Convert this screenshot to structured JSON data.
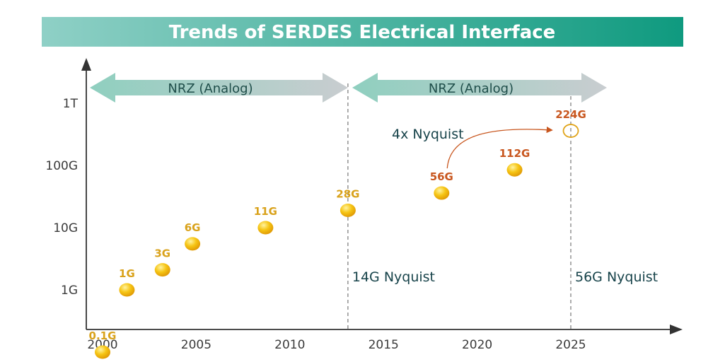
{
  "chart_data": {
    "type": "scatter",
    "title": "Trends of SERDES Electrical Interface",
    "xlabel": "",
    "ylabel": "",
    "x_scale": "linear",
    "y_scale": "log",
    "xlim": [
      1999,
      2030
    ],
    "ylim": [
      0.05,
      3000
    ],
    "x_ticks": [
      2000,
      2005,
      2010,
      2015,
      2020,
      2025
    ],
    "x_tick_labels": [
      "2000",
      "2005",
      "2010",
      "2015",
      "2020",
      "2025"
    ],
    "y_ticks": [
      1,
      10,
      100,
      1000
    ],
    "y_tick_labels": [
      "1G",
      "10G",
      "100G",
      "1T"
    ],
    "grid": false,
    "points": [
      {
        "label": "0.1G",
        "x": 2000,
        "y": 0.1,
        "color": "#d9a21b"
      },
      {
        "label": "1G",
        "x": 2001.3,
        "y": 1,
        "color": "#d9a21b"
      },
      {
        "label": "3G",
        "x": 2003.2,
        "y": 2.1,
        "color": "#d9a21b"
      },
      {
        "label": "6G",
        "x": 2004.8,
        "y": 5.5,
        "color": "#d9a21b"
      },
      {
        "label": "11G",
        "x": 2008.7,
        "y": 10,
        "color": "#d9a21b"
      },
      {
        "label": "28G",
        "x": 2013.1,
        "y": 19,
        "color": "#d9a21b"
      },
      {
        "label": "56G",
        "x": 2018.1,
        "y": 36,
        "color": "#c8561e"
      },
      {
        "label": "112G",
        "x": 2022,
        "y": 85,
        "color": "#c8561e"
      },
      {
        "label": "224G",
        "x": 2025,
        "y": 360,
        "color": "#c8561e",
        "hollow": true
      }
    ],
    "range_arrows": [
      {
        "label": "NRZ (Analog)",
        "x_start": 2000,
        "x_end": 2013
      },
      {
        "label": "NRZ (Analog)",
        "x_start": 2013,
        "x_end": 2026.9
      }
    ],
    "vertical_lines": [
      {
        "x": 2013.1,
        "label": "14G Nyquist"
      },
      {
        "x": 2025,
        "label": "56G Nyquist"
      }
    ],
    "curved_arrow": {
      "label": "4x Nyquist",
      "from_x": 2018.1,
      "to_x": 2024.8
    },
    "colors": {
      "title_bar_start": "#8fd0c6",
      "title_bar_end": "#0f9a7f",
      "band_arrow_start": "#8fcfbf",
      "band_arrow_end": "#c9cdd0",
      "axis": "#333333",
      "dot": "#f2b90f",
      "label_gold": "#d9a21b",
      "label_orange": "#c8561e"
    }
  }
}
